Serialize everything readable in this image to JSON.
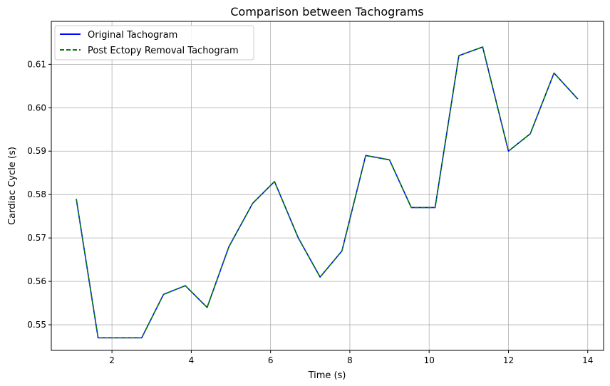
{
  "chart_data": {
    "type": "line",
    "title": "Comparison between Tachograms",
    "xlabel": "Time (s)",
    "ylabel": "Cardiac Cycle (s)",
    "xlim": [
      0.47,
      14.4
    ],
    "ylim": [
      0.5441,
      0.6199
    ],
    "xticks": [
      2,
      4,
      6,
      8,
      10,
      12,
      14
    ],
    "yticks": [
      0.55,
      0.56,
      0.57,
      0.58,
      0.59,
      0.6,
      0.61
    ],
    "ytick_labels": [
      "0.55",
      "0.56",
      "0.57",
      "0.58",
      "0.59",
      "0.60",
      "0.61"
    ],
    "grid": true,
    "legend_position": "upper-left",
    "x": [
      1.1,
      1.65,
      2.2,
      2.75,
      3.3,
      3.85,
      4.4,
      4.95,
      5.55,
      6.1,
      6.7,
      7.25,
      7.8,
      8.4,
      9.0,
      9.55,
      10.15,
      10.75,
      11.35,
      12.0,
      12.55,
      13.15,
      13.75
    ],
    "series": [
      {
        "name": "Original Tachogram",
        "color": "#0000ff",
        "style": "solid",
        "values": [
          0.579,
          0.547,
          0.547,
          0.547,
          0.557,
          0.559,
          0.554,
          0.568,
          0.578,
          0.583,
          0.57,
          0.561,
          0.567,
          0.589,
          0.588,
          0.577,
          0.577,
          0.612,
          0.614,
          0.59,
          0.594,
          0.608,
          0.602
        ]
      },
      {
        "name": "Post Ectopy Removal Tachogram",
        "color": "#008000",
        "style": "dashed",
        "values": [
          0.579,
          0.547,
          0.547,
          0.547,
          0.557,
          0.559,
          0.554,
          0.568,
          0.578,
          0.583,
          0.57,
          0.561,
          0.567,
          0.589,
          0.588,
          0.577,
          0.577,
          0.612,
          0.614,
          0.59,
          0.594,
          0.608,
          0.602
        ]
      }
    ]
  }
}
